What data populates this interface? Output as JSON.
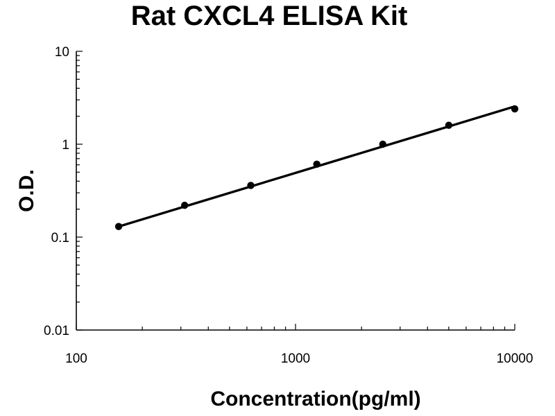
{
  "chart_data": {
    "type": "scatter",
    "title": "Rat CXCL4 ELISA Kit",
    "xlabel": "Concentration(pg/ml)",
    "ylabel": "O.D.",
    "x_scale": "log",
    "y_scale": "log",
    "xlim": [
      100,
      10000
    ],
    "ylim": [
      0.01,
      10
    ],
    "x_ticks": [
      "100",
      "1000",
      "10000"
    ],
    "y_ticks": [
      "0.01",
      "0.1",
      "1",
      "10"
    ],
    "grid": false,
    "legend": "none",
    "series": [
      {
        "color": "#000000",
        "x": [
          156,
          312,
          625,
          1250,
          2500,
          5000,
          10000
        ],
        "y": [
          0.13,
          0.22,
          0.36,
          0.61,
          1.0,
          1.6,
          2.4
        ]
      }
    ],
    "fit_line": {
      "color": "#000000",
      "x": [
        156,
        10000
      ],
      "y": [
        0.13,
        2.55
      ]
    }
  }
}
